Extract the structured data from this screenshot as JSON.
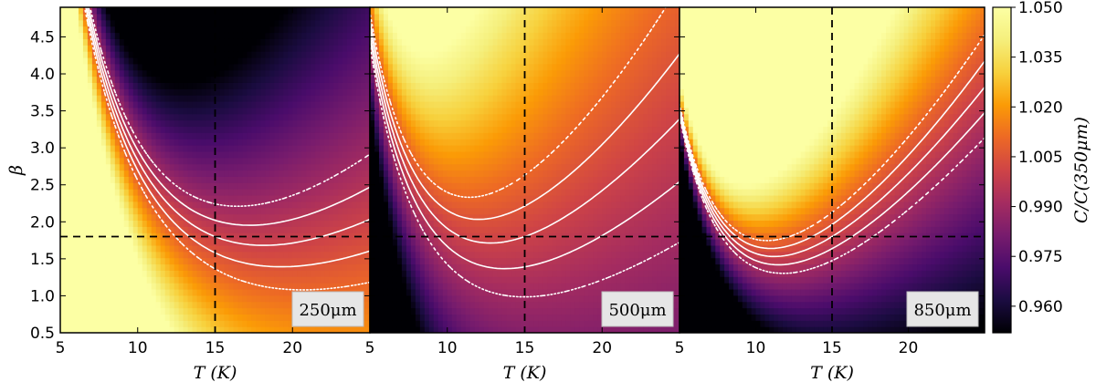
{
  "chart_data": {
    "type": "heatmap",
    "panels": [
      {
        "band": "250μm",
        "wavelength_um": 250
      },
      {
        "band": "500μm",
        "wavelength_um": 500
      },
      {
        "band": "850μm",
        "wavelength_um": 850
      }
    ],
    "xlabel": "T (K)",
    "ylabel": "β",
    "x_ticks": [
      5,
      10,
      15,
      20
    ],
    "x_tick_labels": [
      "5",
      "10",
      "15",
      "20"
    ],
    "xlim": [
      5,
      25
    ],
    "y_ticks": [
      0.5,
      1.0,
      1.5,
      2.0,
      2.5,
      3.0,
      3.5,
      4.0,
      4.5
    ],
    "y_tick_labels": [
      "0.5",
      "1.0",
      "1.5",
      "2.0",
      "2.5",
      "3.0",
      "3.5",
      "4.0",
      "4.5"
    ],
    "ylim": [
      0.5,
      4.9
    ],
    "reference_lines": {
      "T": 15,
      "beta": 1.8
    },
    "colorbar": {
      "label": "C/C(350μm)",
      "range": [
        0.952,
        1.05
      ],
      "ticks": [
        0.96,
        0.975,
        0.99,
        1.005,
        1.02,
        1.035,
        1.05
      ],
      "tick_labels": [
        "0.960",
        "0.975",
        "0.990",
        "1.005",
        "1.020",
        "1.035",
        "1.050"
      ],
      "colormap": "inferno"
    },
    "contours": [
      {
        "level": 0.99,
        "style": "dotted"
      },
      {
        "level": 0.995,
        "style": "dashed"
      },
      {
        "level": 1.0,
        "style": "solid"
      },
      {
        "level": 1.005,
        "style": "dashed"
      },
      {
        "level": 1.01,
        "style": "dotted"
      }
    ]
  }
}
